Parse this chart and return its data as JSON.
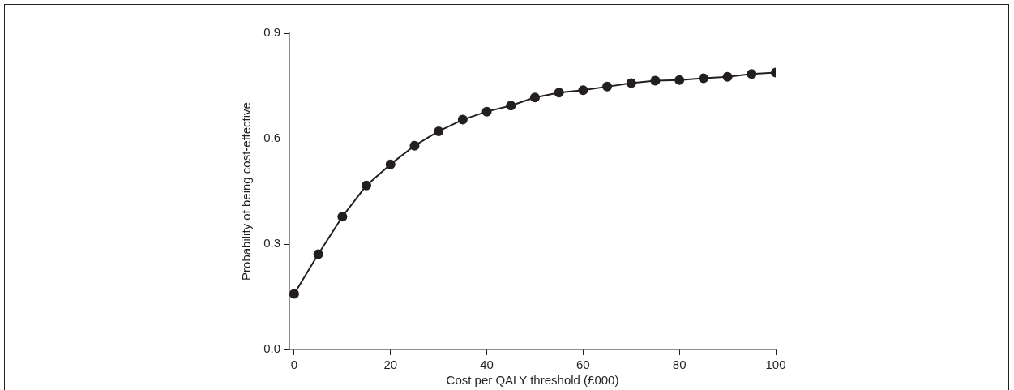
{
  "chart_data": {
    "type": "line",
    "xlabel": "Cost per QALY threshold (£000)",
    "ylabel": "Probability of being cost-effective",
    "x": [
      0,
      5,
      10,
      15,
      20,
      25,
      30,
      35,
      40,
      45,
      50,
      55,
      60,
      65,
      70,
      75,
      80,
      85,
      90,
      95,
      100
    ],
    "series": [
      {
        "color": "#231f20",
        "values": [
          0.158,
          0.271,
          0.378,
          0.467,
          0.527,
          0.58,
          0.621,
          0.654,
          0.677,
          0.694,
          0.717,
          0.731,
          0.738,
          0.748,
          0.758,
          0.765,
          0.767,
          0.772,
          0.776,
          0.784,
          0.788
        ]
      }
    ],
    "xlim": [
      -1,
      100
    ],
    "xticks": [
      0,
      20,
      40,
      60,
      80,
      100
    ],
    "ylim": [
      0,
      0.9
    ],
    "yticks": [
      {
        "value": 0,
        "label": "0.0"
      },
      {
        "value": 0.3,
        "label": "0.3"
      },
      {
        "value": 0.6,
        "label": "0.6"
      },
      {
        "value": 0.9,
        "label": "0.9"
      }
    ],
    "grid": false,
    "legend": false,
    "marker": "circle",
    "line_style": "solid"
  }
}
